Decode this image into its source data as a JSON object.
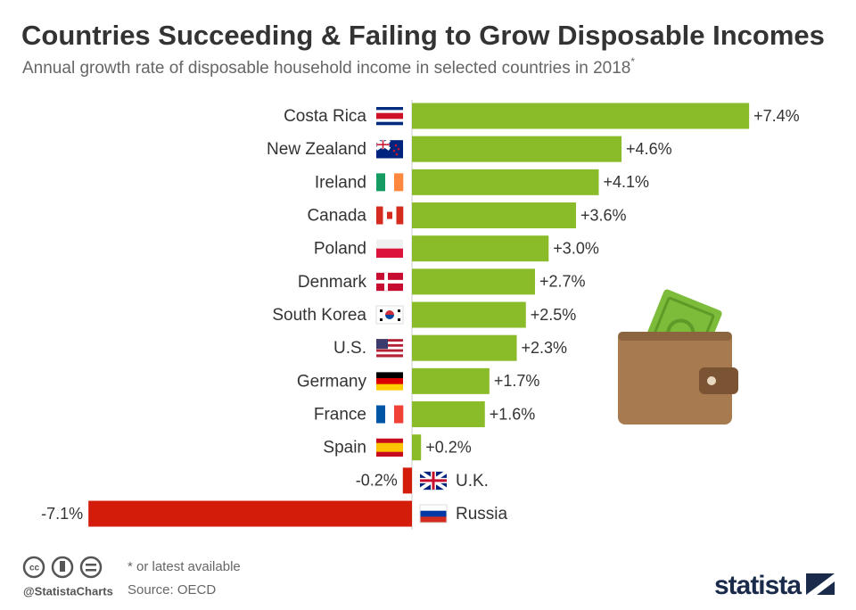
{
  "chart_data": {
    "type": "bar",
    "orientation": "horizontal",
    "title": "Countries Succeeding & Failing to Grow Disposable Incomes",
    "subtitle": "Annual growth rate of disposable household income in selected countries in 2018",
    "subtitle_note": "*",
    "categories": [
      "Costa Rica",
      "New Zealand",
      "Ireland",
      "Canada",
      "Poland",
      "Denmark",
      "South Korea",
      "U.S.",
      "Germany",
      "France",
      "Spain",
      "U.K.",
      "Russia"
    ],
    "values": [
      7.4,
      4.6,
      4.1,
      3.6,
      3.0,
      2.7,
      2.5,
      2.3,
      1.7,
      1.6,
      0.2,
      -0.2,
      -7.1
    ],
    "value_labels": [
      "+7.4%",
      "+4.6%",
      "+4.1%",
      "+3.6%",
      "+3.0%",
      "+2.7%",
      "+2.5%",
      "+2.3%",
      "+1.7%",
      "+1.6%",
      "+0.2%",
      "-0.2%",
      "-7.1%"
    ],
    "colors": [
      "#8abb28",
      "#8abb28",
      "#8abb28",
      "#8abb28",
      "#8abb28",
      "#8abb28",
      "#8abb28",
      "#8abb28",
      "#8abb28",
      "#8abb28",
      "#8abb28",
      "#d41c0a",
      "#d41c0a"
    ],
    "footnote": "* or latest available",
    "source": "Source: OECD",
    "handle": "@StatistaCharts",
    "brand": "statista"
  }
}
